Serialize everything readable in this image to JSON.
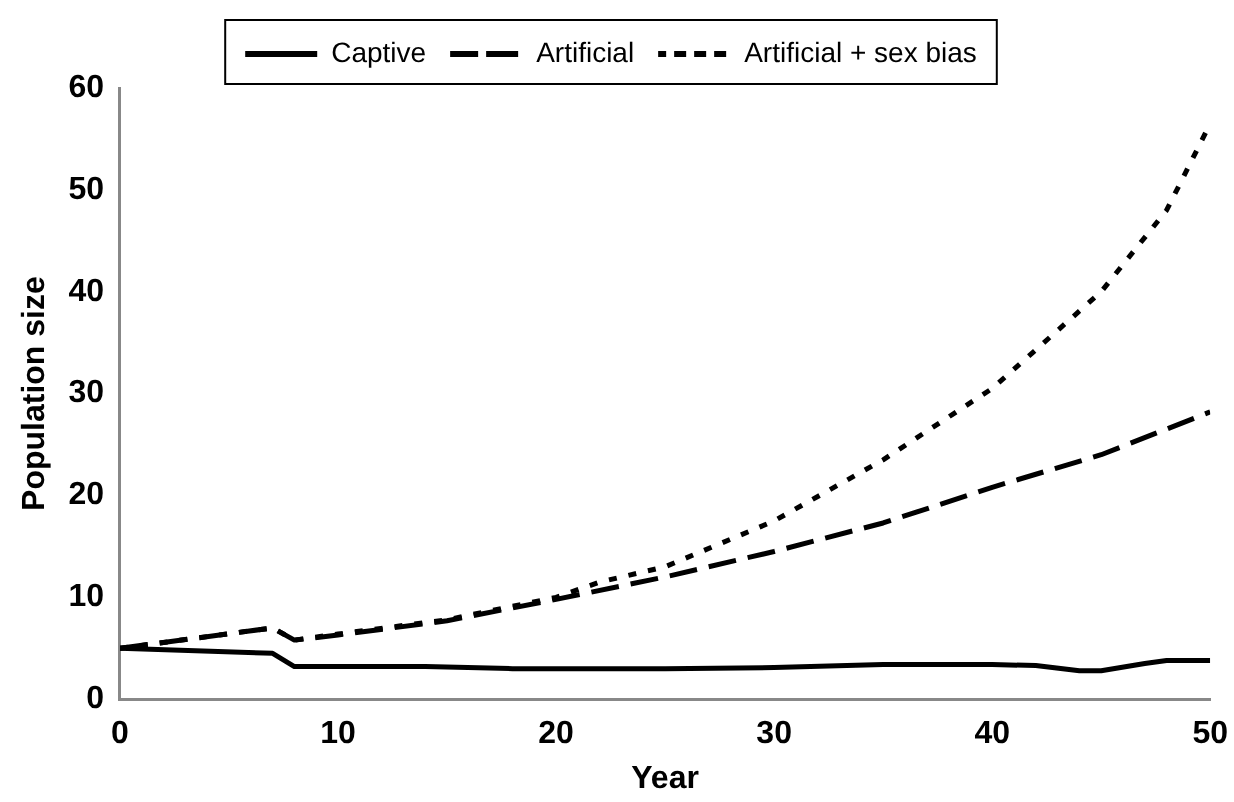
{
  "chart_data": {
    "type": "line",
    "xlabel": "Year",
    "ylabel": "Population size",
    "xlim": [
      0,
      50
    ],
    "xticks": [
      0,
      10,
      20,
      30,
      40,
      50
    ],
    "ylim": [
      0,
      60
    ],
    "yticks": [
      0,
      10,
      20,
      30,
      40,
      50,
      60
    ],
    "grid": false,
    "legend": "top",
    "marker": "none",
    "series": [
      {
        "name": "Captive",
        "color": "#000000",
        "line_style": "solid",
        "x": [
          0,
          7,
          8,
          14,
          18,
          25,
          30,
          35,
          40,
          42,
          44,
          45,
          47,
          48,
          50
        ],
        "values": [
          5,
          4.5,
          3.2,
          3.2,
          3,
          3,
          3.1,
          3.4,
          3.4,
          3.3,
          2.8,
          2.8,
          3.5,
          3.8,
          3.8
        ]
      },
      {
        "name": "Artificial",
        "color": "#000000",
        "line_style": "dashed",
        "x": [
          0,
          7,
          8,
          10,
          15,
          20,
          25,
          30,
          35,
          40,
          45,
          50
        ],
        "values": [
          5,
          7,
          5.8,
          6.3,
          7.7,
          9.8,
          12,
          14.5,
          17.3,
          20.8,
          24,
          28.2
        ]
      },
      {
        "name": "Artificial + sex bias",
        "color": "#000000",
        "line_style": "dotted",
        "x": [
          0,
          7,
          8,
          10,
          15,
          20,
          22,
          25,
          30,
          35,
          40,
          45,
          48,
          50
        ],
        "values": [
          5,
          7,
          5.8,
          6.4,
          7.8,
          10,
          11.5,
          13,
          17.5,
          23.5,
          30.5,
          40,
          48,
          56.5
        ]
      }
    ]
  }
}
